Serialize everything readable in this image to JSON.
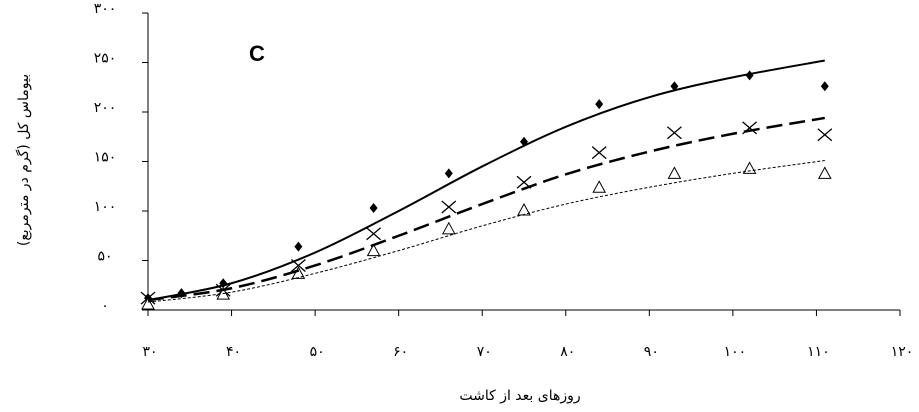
{
  "chart_data": {
    "type": "scatter",
    "annotation": "C",
    "xlabel": "روزهای بعد از کاشت",
    "ylabel": "بیوماس کل (گرم در مترمربع)",
    "xlim": [
      30,
      120
    ],
    "ylim": [
      0,
      300
    ],
    "xticks": [
      {
        "value": 30,
        "label": "۳۰"
      },
      {
        "value": 40,
        "label": "۴۰"
      },
      {
        "value": 50,
        "label": "۵۰"
      },
      {
        "value": 60,
        "label": "۶۰"
      },
      {
        "value": 70,
        "label": "۷۰"
      },
      {
        "value": 80,
        "label": "۸۰"
      },
      {
        "value": 90,
        "label": "۹۰"
      },
      {
        "value": 100,
        "label": "۱۰۰"
      },
      {
        "value": 110,
        "label": "۱۱۰"
      },
      {
        "value": 120,
        "label": "۱۲۰"
      }
    ],
    "yticks": [
      {
        "value": 0,
        "label": "۰"
      },
      {
        "value": 50,
        "label": "۵۰"
      },
      {
        "value": 100,
        "label": "۱۰۰"
      },
      {
        "value": 150,
        "label": "۱۵۰"
      },
      {
        "value": 200,
        "label": "۲۰۰"
      },
      {
        "value": 250,
        "label": "۲۵۰"
      },
      {
        "value": 300,
        "label": "۳۰۰"
      }
    ],
    "series": [
      {
        "marker": "diamond",
        "color": "#000000",
        "x": [
          30,
          34,
          39,
          48,
          57,
          66,
          75,
          84,
          93,
          102,
          111
        ],
        "values": [
          12,
          17,
          27,
          64,
          103,
          138,
          170,
          208,
          226,
          237,
          226
        ]
      },
      {
        "marker": "cross",
        "color": "#000000",
        "x": [
          30,
          39,
          48,
          57,
          66,
          75,
          84,
          93,
          102,
          111
        ],
        "values": [
          12,
          20,
          45,
          77,
          104,
          129,
          159,
          179,
          184,
          177
        ]
      },
      {
        "marker": "triangle",
        "color": "#000000",
        "x": [
          30,
          39,
          48,
          57,
          66,
          75,
          84,
          93,
          102,
          111
        ],
        "values": [
          6,
          16,
          37,
          60,
          82,
          101,
          124,
          138,
          143,
          138
        ]
      },
      {
        "line": "solid",
        "color": "#000000",
        "x": [
          30,
          40,
          50,
          60,
          70,
          80,
          90,
          100,
          111
        ],
        "values": [
          10,
          27,
          58,
          100,
          145,
          185,
          215,
          235,
          252
        ]
      },
      {
        "line": "dashed",
        "color": "#000000",
        "x": [
          30,
          40,
          50,
          60,
          70,
          80,
          90,
          100,
          111
        ],
        "values": [
          10,
          22,
          45,
          75,
          107,
          137,
          160,
          178,
          194
        ]
      },
      {
        "line": "dotted",
        "color": "#000000",
        "x": [
          30,
          40,
          50,
          60,
          70,
          80,
          90,
          100,
          111
        ],
        "values": [
          8,
          18,
          37,
          60,
          85,
          107,
          124,
          138,
          151
        ]
      }
    ]
  }
}
